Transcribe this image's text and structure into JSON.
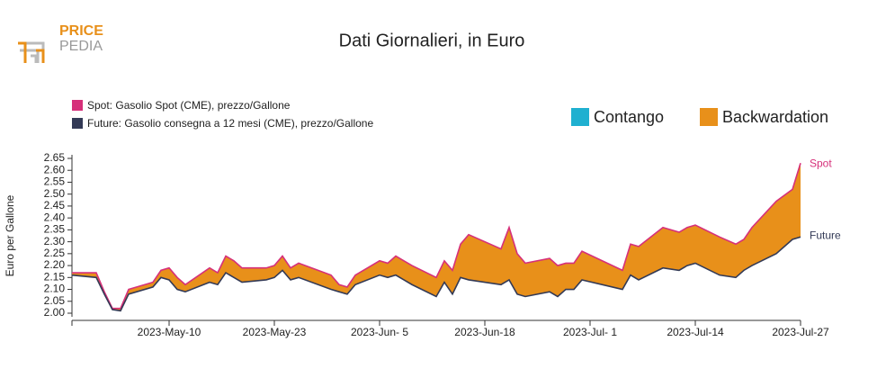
{
  "logo": {
    "top": "PRICE",
    "bottom": "PEDIA"
  },
  "chart_data": {
    "type": "area_between",
    "title": "Dati Giornalieri, in Euro",
    "y_label": "Euro per Gallone",
    "x": [
      "2023-04-28",
      "2023-05-01",
      "2023-05-02",
      "2023-05-03",
      "2023-05-04",
      "2023-05-05",
      "2023-05-08",
      "2023-05-09",
      "2023-05-10",
      "2023-05-11",
      "2023-05-12",
      "2023-05-15",
      "2023-05-16",
      "2023-05-17",
      "2023-05-18",
      "2023-05-19",
      "2023-05-22",
      "2023-05-23",
      "2023-05-24",
      "2023-05-25",
      "2023-05-26",
      "2023-05-30",
      "2023-05-31",
      "2023-06-01",
      "2023-06-02",
      "2023-06-05",
      "2023-06-06",
      "2023-06-07",
      "2023-06-08",
      "2023-06-09",
      "2023-06-12",
      "2023-06-13",
      "2023-06-14",
      "2023-06-15",
      "2023-06-16",
      "2023-06-20",
      "2023-06-21",
      "2023-06-22",
      "2023-06-23",
      "2023-06-26",
      "2023-06-27",
      "2023-06-28",
      "2023-06-29",
      "2023-06-30",
      "2023-07-05",
      "2023-07-06",
      "2023-07-07",
      "2023-07-10",
      "2023-07-12",
      "2023-07-13",
      "2023-07-14",
      "2023-07-17",
      "2023-07-19",
      "2023-07-20",
      "2023-07-21",
      "2023-07-24",
      "2023-07-26",
      "2023-07-27"
    ],
    "series": [
      {
        "name": "Spot: Gasolio Spot (CME), prezzo/Gallone",
        "end_label": "Spot",
        "color": "#d6307a",
        "values": [
          2.17,
          2.17,
          2.09,
          2.02,
          2.02,
          2.1,
          2.13,
          2.18,
          2.19,
          2.15,
          2.12,
          2.19,
          2.17,
          2.24,
          2.22,
          2.19,
          2.19,
          2.2,
          2.24,
          2.19,
          2.21,
          2.16,
          2.12,
          2.11,
          2.16,
          2.22,
          2.21,
          2.24,
          2.22,
          2.2,
          2.15,
          2.22,
          2.18,
          2.29,
          2.33,
          2.27,
          2.36,
          2.25,
          2.21,
          2.23,
          2.2,
          2.21,
          2.21,
          2.26,
          2.18,
          2.29,
          2.28,
          2.36,
          2.34,
          2.36,
          2.37,
          2.32,
          2.29,
          2.31,
          2.36,
          2.47,
          2.52,
          2.63
        ]
      },
      {
        "name": "Future: Gasolio consegna a 12 mesi (CME), prezzo/Gallone",
        "end_label": "Future",
        "color": "#333a56",
        "values": [
          2.16,
          2.15,
          2.08,
          2.015,
          2.01,
          2.08,
          2.11,
          2.15,
          2.14,
          2.1,
          2.09,
          2.13,
          2.12,
          2.17,
          2.15,
          2.13,
          2.14,
          2.15,
          2.18,
          2.14,
          2.15,
          2.1,
          2.09,
          2.08,
          2.12,
          2.16,
          2.15,
          2.16,
          2.14,
          2.12,
          2.07,
          2.13,
          2.08,
          2.15,
          2.14,
          2.12,
          2.14,
          2.08,
          2.07,
          2.09,
          2.07,
          2.1,
          2.1,
          2.14,
          2.1,
          2.16,
          2.14,
          2.19,
          2.18,
          2.2,
          2.21,
          2.16,
          2.15,
          2.18,
          2.2,
          2.25,
          2.31,
          2.32
        ]
      }
    ],
    "area_legend": [
      {
        "name": "Contango",
        "color": "#1fb0d0"
      },
      {
        "name": "Backwardation",
        "color": "#e8901a"
      }
    ],
    "xlim": [
      "2023-04-28",
      "2023-07-27"
    ],
    "xticks": [
      {
        "value": "2023-05-10",
        "label": "2023-May-10"
      },
      {
        "value": "2023-05-23",
        "label": "2023-May-23"
      },
      {
        "value": "2023-06-05",
        "label": "2023-Jun- 5"
      },
      {
        "value": "2023-06-18",
        "label": "2023-Jun-18"
      },
      {
        "value": "2023-07-01",
        "label": "2023-Jul- 1"
      },
      {
        "value": "2023-07-14",
        "label": "2023-Jul-14"
      },
      {
        "value": "2023-07-27",
        "label": "2023-Jul-27"
      }
    ],
    "ylim": [
      2.0,
      2.65
    ],
    "yticks": [
      {
        "value": 2.0,
        "label": "2.00"
      },
      2.05,
      {
        "value": 2.1,
        "label": "2.10"
      },
      2.15,
      {
        "value": 2.2,
        "label": "2.20"
      },
      2.25,
      {
        "value": 2.3,
        "label": "2.30"
      },
      2.35,
      {
        "value": 2.4,
        "label": "2.40"
      },
      2.45,
      {
        "value": 2.5,
        "label": "2.50"
      },
      2.55,
      {
        "value": 2.6,
        "label": "2.60"
      },
      2.65
    ]
  }
}
